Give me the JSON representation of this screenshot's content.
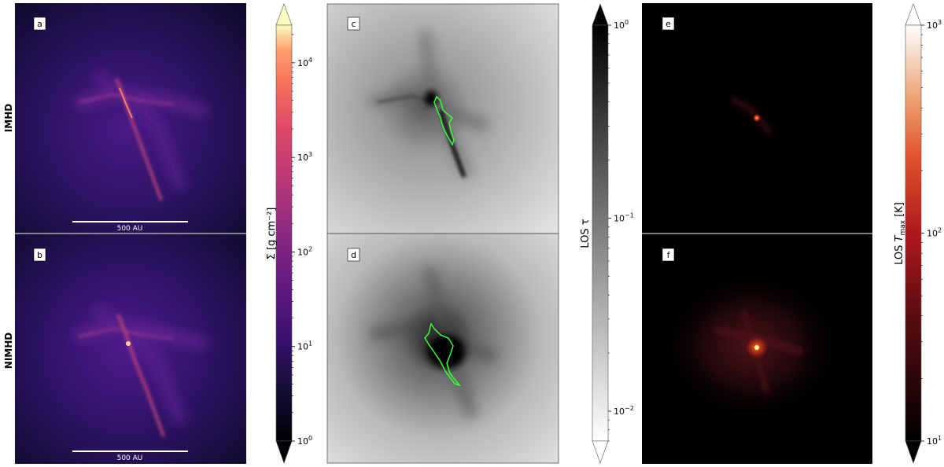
{
  "rows": [
    {
      "label": "IMHD"
    },
    {
      "label": "NIMHD"
    }
  ],
  "panels": [
    {
      "letter": "a",
      "scalebar": "500 AU"
    },
    {
      "letter": "b",
      "scalebar": "500 AU"
    },
    {
      "letter": "c"
    },
    {
      "letter": "d"
    },
    {
      "letter": "e"
    },
    {
      "letter": "f"
    }
  ],
  "colorbars": [
    {
      "label": "Σ [g cm⁻²]",
      "ticks": [
        {
          "base": "10",
          "exp": "0"
        },
        {
          "base": "10",
          "exp": "1"
        },
        {
          "base": "10",
          "exp": "2"
        },
        {
          "base": "10",
          "exp": "3"
        },
        {
          "base": "10",
          "exp": "4"
        }
      ],
      "range": [
        1,
        25000
      ],
      "scale": "log",
      "colormap": "magma",
      "extend": "both"
    },
    {
      "label": "LOS τ",
      "ticks": [
        {
          "base": "10",
          "exp": "−2"
        },
        {
          "base": "10",
          "exp": "−1"
        },
        {
          "base": "10",
          "exp": "0"
        }
      ],
      "range": [
        0.007,
        1
      ],
      "scale": "log",
      "colormap": "gray_r",
      "extend": "both"
    },
    {
      "label_main": "LOS ",
      "label_sym": "T",
      "label_sub": "max",
      "label_unit": " [K]",
      "ticks": [
        {
          "base": "10",
          "exp": "1"
        },
        {
          "base": "10",
          "exp": "2"
        },
        {
          "base": "10",
          "exp": "3"
        }
      ],
      "range": [
        10,
        1000
      ],
      "scale": "log",
      "colormap": "gist_heat",
      "extend": "both"
    }
  ],
  "colors": {
    "contour": "#39ff39",
    "magma_bg": "#18103a",
    "divider": "#c8c8c8"
  }
}
